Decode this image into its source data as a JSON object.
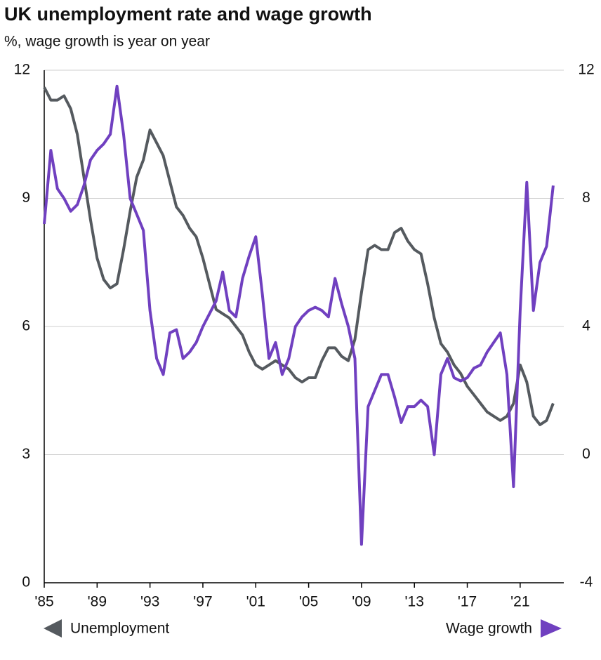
{
  "chart_data": {
    "type": "line",
    "title": "UK unemployment rate and wage growth",
    "subtitle": "%, wage growth is year on year",
    "x": [
      1985,
      1985.5,
      1986,
      1986.5,
      1987,
      1987.5,
      1988,
      1988.5,
      1989,
      1989.5,
      1990,
      1990.5,
      1991,
      1991.5,
      1992,
      1992.5,
      1993,
      1993.5,
      1994,
      1994.5,
      1995,
      1995.5,
      1996,
      1996.5,
      1997,
      1997.5,
      1998,
      1998.5,
      1999,
      1999.5,
      2000,
      2000.5,
      2001,
      2001.5,
      2002,
      2002.5,
      2003,
      2003.5,
      2004,
      2004.5,
      2005,
      2005.5,
      2006,
      2006.5,
      2007,
      2007.5,
      2008,
      2008.5,
      2009,
      2009.5,
      2010,
      2010.5,
      2011,
      2011.5,
      2012,
      2012.5,
      2013,
      2013.5,
      2014,
      2014.5,
      2015,
      2015.5,
      2016,
      2016.5,
      2017,
      2017.5,
      2018,
      2018.5,
      2019,
      2019.5,
      2020,
      2020.5,
      2021,
      2021.5,
      2022,
      2022.5,
      2023,
      2023.5
    ],
    "series": [
      {
        "name": "Unemployment",
        "color": "#555a5f",
        "axis": "y",
        "values": [
          11.6,
          11.3,
          11.3,
          11.4,
          11.1,
          10.5,
          9.5,
          8.5,
          7.6,
          7.1,
          6.9,
          7.0,
          7.8,
          8.7,
          9.5,
          9.9,
          10.6,
          10.3,
          10.0,
          9.4,
          8.8,
          8.6,
          8.3,
          8.1,
          7.6,
          7.0,
          6.4,
          6.3,
          6.2,
          6.0,
          5.8,
          5.4,
          5.1,
          5.0,
          5.1,
          5.2,
          5.1,
          5.0,
          4.8,
          4.7,
          4.8,
          4.8,
          5.2,
          5.5,
          5.5,
          5.3,
          5.2,
          5.7,
          6.8,
          7.8,
          7.9,
          7.8,
          7.8,
          8.2,
          8.3,
          8.0,
          7.8,
          7.7,
          7.0,
          6.2,
          5.6,
          5.4,
          5.1,
          4.9,
          4.6,
          4.4,
          4.2,
          4.0,
          3.9,
          3.8,
          3.9,
          4.2,
          5.1,
          4.7,
          3.9,
          3.7,
          3.8,
          4.2
        ]
      },
      {
        "name": "Wage growth",
        "color": "#7040c0",
        "axis": "y2",
        "values": [
          7.2,
          9.5,
          8.3,
          8.0,
          7.6,
          7.8,
          8.4,
          9.2,
          9.5,
          9.7,
          10.0,
          11.5,
          10.0,
          8.0,
          7.5,
          7.0,
          4.5,
          3.0,
          2.5,
          3.8,
          3.9,
          3.0,
          3.2,
          3.5,
          4.0,
          4.4,
          4.8,
          5.7,
          4.5,
          4.3,
          5.5,
          6.2,
          6.8,
          5.0,
          3.0,
          3.5,
          2.5,
          3.0,
          4.0,
          4.3,
          4.5,
          4.6,
          4.5,
          4.3,
          5.5,
          4.7,
          4.0,
          3.0,
          -2.8,
          1.5,
          2.0,
          2.5,
          2.5,
          1.8,
          1.0,
          1.5,
          1.5,
          1.7,
          1.5,
          0.0,
          2.5,
          3.0,
          2.4,
          2.3,
          2.4,
          2.7,
          2.8,
          3.2,
          3.5,
          3.8,
          2.5,
          -1.0,
          4.5,
          8.5,
          4.5,
          6.0,
          6.5,
          8.4
        ]
      }
    ],
    "xlim": [
      1985,
      2024.3
    ],
    "xticks": [
      {
        "value": 1985,
        "label": "'85"
      },
      {
        "value": 1989,
        "label": "'89"
      },
      {
        "value": 1993,
        "label": "'93"
      },
      {
        "value": 1997,
        "label": "'97"
      },
      {
        "value": 2001,
        "label": "'01"
      },
      {
        "value": 2005,
        "label": "'05"
      },
      {
        "value": 2009,
        "label": "'09"
      },
      {
        "value": 2013,
        "label": "'13"
      },
      {
        "value": 2017,
        "label": "'17"
      },
      {
        "value": 2021,
        "label": "'21"
      }
    ],
    "ylim": [
      0,
      12
    ],
    "yticks": [
      0,
      3,
      6,
      9,
      12
    ],
    "y2lim": [
      -4,
      12
    ],
    "y2ticks": [
      -4,
      0,
      4,
      8,
      12
    ],
    "grid": true
  }
}
